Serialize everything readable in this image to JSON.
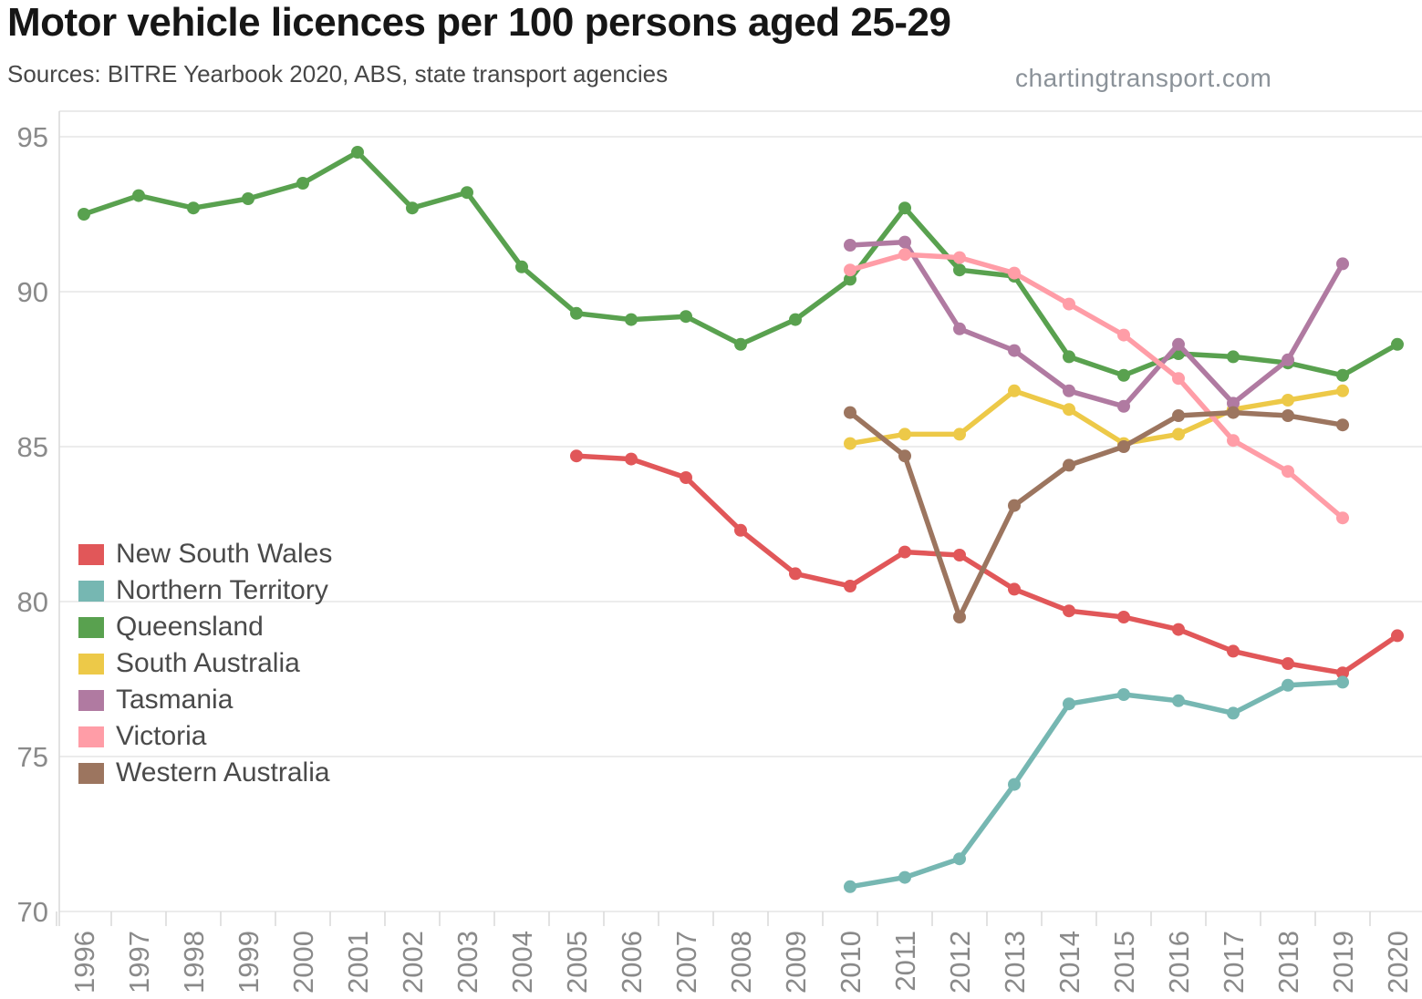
{
  "header": {
    "title": "Motor vehicle licences per 100 persons aged 25-29",
    "subtitle": "Sources: BITRE Yearbook 2020, ABS, state transport agencies",
    "watermark": "chartingtransport.com"
  },
  "chart_data": {
    "type": "line",
    "title": "Motor vehicle licences per 100 persons aged 25-29",
    "xlabel": "",
    "ylabel": "",
    "x": [
      1996,
      1997,
      1998,
      1999,
      2000,
      2001,
      2002,
      2003,
      2004,
      2005,
      2006,
      2007,
      2008,
      2009,
      2010,
      2011,
      2012,
      2013,
      2014,
      2015,
      2016,
      2017,
      2018,
      2019,
      2020
    ],
    "ylim": [
      70,
      95
    ],
    "yticks": [
      70,
      75,
      80,
      85,
      90,
      95
    ],
    "grid": true,
    "legend_position": "center-left",
    "marker": "circle",
    "series": [
      {
        "name": "New South Wales",
        "color": "#e15759",
        "points": [
          [
            2005,
            84.7
          ],
          [
            2006,
            84.6
          ],
          [
            2007,
            84.0
          ],
          [
            2008,
            82.3
          ],
          [
            2009,
            80.9
          ],
          [
            2010,
            80.5
          ],
          [
            2011,
            81.6
          ],
          [
            2012,
            81.5
          ],
          [
            2013,
            80.4
          ],
          [
            2014,
            79.7
          ],
          [
            2015,
            79.5
          ],
          [
            2016,
            79.1
          ],
          [
            2017,
            78.4
          ],
          [
            2018,
            78.0
          ],
          [
            2019,
            77.7
          ],
          [
            2020,
            78.9
          ]
        ]
      },
      {
        "name": "Northern Territory",
        "color": "#76b7b2",
        "points": [
          [
            2010,
            70.8
          ],
          [
            2011,
            71.1
          ],
          [
            2012,
            71.7
          ],
          [
            2013,
            74.1
          ],
          [
            2014,
            76.7
          ],
          [
            2015,
            77.0
          ],
          [
            2016,
            76.8
          ],
          [
            2017,
            76.4
          ],
          [
            2018,
            77.3
          ],
          [
            2019,
            77.4
          ]
        ]
      },
      {
        "name": "Queensland",
        "color": "#59a14f",
        "points": [
          [
            1996,
            92.5
          ],
          [
            1997,
            93.1
          ],
          [
            1998,
            92.7
          ],
          [
            1999,
            93.0
          ],
          [
            2000,
            93.5
          ],
          [
            2001,
            94.5
          ],
          [
            2002,
            92.7
          ],
          [
            2003,
            93.2
          ],
          [
            2004,
            90.8
          ],
          [
            2005,
            89.3
          ],
          [
            2006,
            89.1
          ],
          [
            2007,
            89.2
          ],
          [
            2008,
            88.3
          ],
          [
            2009,
            89.1
          ],
          [
            2010,
            90.4
          ],
          [
            2011,
            92.7
          ],
          [
            2012,
            90.7
          ],
          [
            2013,
            90.5
          ],
          [
            2014,
            87.9
          ],
          [
            2015,
            87.3
          ],
          [
            2016,
            88.0
          ],
          [
            2017,
            87.9
          ],
          [
            2018,
            87.7
          ],
          [
            2019,
            87.3
          ],
          [
            2020,
            88.3
          ]
        ]
      },
      {
        "name": "South Australia",
        "color": "#edc948",
        "points": [
          [
            2010,
            85.1
          ],
          [
            2011,
            85.4
          ],
          [
            2012,
            85.4
          ],
          [
            2013,
            86.8
          ],
          [
            2014,
            86.2
          ],
          [
            2015,
            85.1
          ],
          [
            2016,
            85.4
          ],
          [
            2017,
            86.2
          ],
          [
            2018,
            86.5
          ],
          [
            2019,
            86.8
          ]
        ]
      },
      {
        "name": "Tasmania",
        "color": "#b07aa1",
        "points": [
          [
            2010,
            91.5
          ],
          [
            2011,
            91.6
          ],
          [
            2012,
            88.8
          ],
          [
            2013,
            88.1
          ],
          [
            2014,
            86.8
          ],
          [
            2015,
            86.3
          ],
          [
            2016,
            88.3
          ],
          [
            2017,
            86.4
          ],
          [
            2018,
            87.8
          ],
          [
            2019,
            90.9
          ]
        ]
      },
      {
        "name": "Victoria",
        "color": "#ff9da7",
        "points": [
          [
            2010,
            90.7
          ],
          [
            2011,
            91.2
          ],
          [
            2012,
            91.1
          ],
          [
            2013,
            90.6
          ],
          [
            2014,
            89.6
          ],
          [
            2015,
            88.6
          ],
          [
            2016,
            87.2
          ],
          [
            2017,
            85.2
          ],
          [
            2018,
            84.2
          ],
          [
            2019,
            82.7
          ]
        ]
      },
      {
        "name": "Western Australia",
        "color": "#9c755f",
        "points": [
          [
            2010,
            86.1
          ],
          [
            2011,
            84.7
          ],
          [
            2012,
            79.5
          ],
          [
            2013,
            83.1
          ],
          [
            2014,
            84.4
          ],
          [
            2015,
            85.0
          ],
          [
            2016,
            86.0
          ],
          [
            2017,
            86.1
          ],
          [
            2018,
            86.0
          ],
          [
            2019,
            85.7
          ]
        ]
      }
    ]
  }
}
